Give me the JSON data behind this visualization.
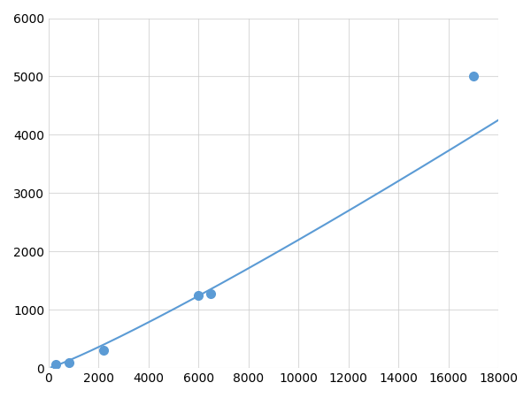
{
  "x_points": [
    300,
    800,
    2200,
    6000,
    6500,
    17000
  ],
  "y_points": [
    60,
    100,
    310,
    1250,
    1280,
    5000
  ],
  "line_color": "#5b9bd5",
  "marker_color": "#5b9bd5",
  "marker_size": 7,
  "line_width": 1.5,
  "xlim": [
    0,
    18000
  ],
  "ylim": [
    0,
    6000
  ],
  "xticks": [
    0,
    2000,
    4000,
    6000,
    8000,
    10000,
    12000,
    14000,
    16000,
    18000
  ],
  "yticks": [
    0,
    1000,
    2000,
    3000,
    4000,
    5000,
    6000
  ],
  "grid_color": "#cccccc",
  "grid_alpha": 0.7,
  "background_color": "#ffffff",
  "figsize": [
    6.0,
    4.5
  ],
  "dpi": 100
}
